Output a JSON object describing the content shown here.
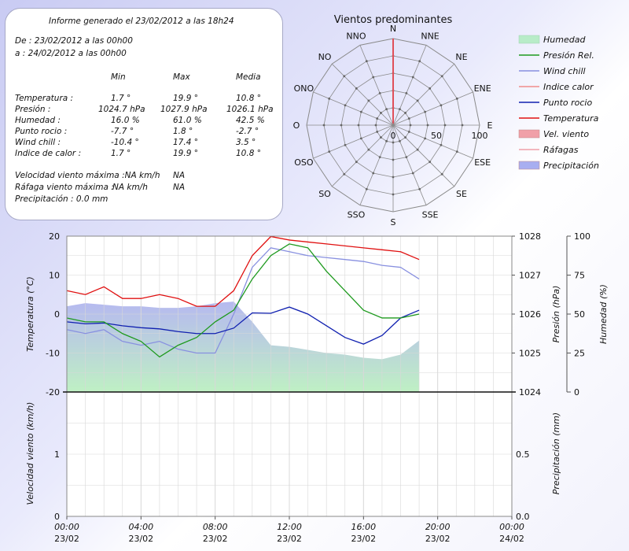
{
  "report": {
    "title": "Informe generado el 23/02/2012 a las 18h24",
    "from": "De : 23/02/2012 a las 00h00",
    "to": "a : 24/02/2012 a las 00h00",
    "col_min": "Min",
    "col_max": "Max",
    "col_avg": "Media",
    "rows": [
      {
        "label": "Temperatura :",
        "min": "1.7 °",
        "max": "19.9 °",
        "avg": "10.8 °"
      },
      {
        "label": "Presión :",
        "min": "1024.7 hPa",
        "max": "1027.9 hPa",
        "avg": "1026.1 hPa"
      },
      {
        "label": "Humedad :",
        "min": "16.0 %",
        "max": "61.0 %",
        "avg": "42.5 %"
      },
      {
        "label": "Punto rocio :",
        "min": "-7.7 °",
        "max": "1.8 °",
        "avg": "-2.7 °"
      },
      {
        "label": "Wind chill :",
        "min": "-10.4 °",
        "max": "17.4 °",
        "avg": "3.5 °"
      },
      {
        "label": "Indice de calor :",
        "min": "1.7 °",
        "max": "19.9 °",
        "avg": "10.8 °"
      }
    ],
    "wind_max": "Velocidad viento máxima :NA km/h",
    "wind_max_val": "NA",
    "gust_max": "Ráfaga viento máxima :",
    "gust_max_unit": "NA km/h",
    "gust_max_val": "NA",
    "precip": "Precipitación : 0.0 mm"
  },
  "wind_rose": {
    "title": "Vientos predominantes",
    "directions": [
      "N",
      "NNE",
      "NE",
      "ENE",
      "E",
      "ESE",
      "SE",
      "SSE",
      "S",
      "SSO",
      "SO",
      "OSO",
      "O",
      "ONO",
      "NO",
      "NNO"
    ],
    "scale_labels": [
      "0",
      "50",
      "100"
    ],
    "values": [
      100,
      0,
      0,
      0,
      0,
      0,
      0,
      0,
      0,
      0,
      0,
      0,
      0,
      0,
      0,
      0
    ],
    "bar_color": "#e0505a"
  },
  "legend": [
    {
      "label": "Humedad",
      "kind": "area",
      "color": "#b8ecc8"
    },
    {
      "label": "Presión Rel.",
      "kind": "line",
      "color": "#1e9a1e"
    },
    {
      "label": "Wind chill",
      "kind": "line",
      "color": "#8890e0"
    },
    {
      "label": "Indice calor",
      "kind": "line",
      "color": "#f08c8c"
    },
    {
      "label": "Punto rocio",
      "kind": "line",
      "color": "#1020b0"
    },
    {
      "label": "Temperatura",
      "kind": "line",
      "color": "#e01010"
    },
    {
      "label": "Vel. viento",
      "kind": "box",
      "color": "#f0a0a8"
    },
    {
      "label": "Ráfagas",
      "kind": "line",
      "color": "#f0a0a8"
    },
    {
      "label": "Precipitación",
      "kind": "box",
      "color": "#a8aef0"
    }
  ],
  "chart_data": [
    {
      "type": "line",
      "ylabel": "Temperatura (°C)",
      "ylabel2": "Presión (hPa)",
      "ylabel3": "Humedad (%)",
      "ylim": [
        -20,
        20
      ],
      "yticks": [
        "20",
        "10",
        "0",
        "-10",
        "-20"
      ],
      "y2lim": [
        1024,
        1028
      ],
      "y2ticks": [
        "1028",
        "1027",
        "1026",
        "1025",
        "1024"
      ],
      "y3lim": [
        0,
        100
      ],
      "y3ticks": [
        "100",
        "75",
        "50",
        "25",
        "0"
      ],
      "x_hours": [
        0,
        1,
        2,
        3,
        4,
        5,
        6,
        7,
        8,
        9,
        10,
        11,
        12,
        13,
        14,
        15,
        16,
        17,
        18,
        19
      ],
      "series": [
        {
          "name": "Humedad",
          "axis": "y3",
          "values": [
            55,
            57,
            56,
            55,
            55,
            54,
            54,
            55,
            57,
            58,
            45,
            30,
            29,
            27,
            25,
            24,
            22,
            21,
            24,
            33
          ]
        },
        {
          "name": "Temperatura",
          "axis": "y",
          "values": [
            6,
            5,
            7,
            4,
            4,
            5,
            4,
            2,
            2,
            6,
            15,
            19.9,
            19,
            18.5,
            18,
            17.5,
            17,
            16.5,
            16,
            14
          ]
        },
        {
          "name": "Wind chill",
          "axis": "y",
          "values": [
            -4,
            -5,
            -4,
            -7,
            -8,
            -7,
            -9,
            -10,
            -10,
            0,
            12,
            17,
            16,
            15,
            14.5,
            14,
            13.5,
            12.5,
            12,
            9
          ]
        },
        {
          "name": "Punto rocio",
          "axis": "y",
          "values": [
            -2,
            -2.5,
            -2.3,
            -3,
            -3.5,
            -3.8,
            -4.5,
            -5,
            -5,
            -3.6,
            0.3,
            0.2,
            1.8,
            0,
            -3,
            -6,
            -7.7,
            -5.5,
            -1,
            1
          ]
        },
        {
          "name": "Presión Rel.",
          "axis": "y2",
          "values": [
            1025.9,
            1025.8,
            1025.8,
            1025.5,
            1025.3,
            1024.9,
            1025.2,
            1025.4,
            1025.8,
            1026.1,
            1026.9,
            1027.5,
            1027.8,
            1027.7,
            1027.1,
            1026.6,
            1026.1,
            1025.9,
            1025.9,
            1026
          ]
        }
      ]
    },
    {
      "type": "bar",
      "ylabel": "Velocidad viento (km/h)",
      "ylabel2": "Precipitación (mm)",
      "ylim": [
        0,
        2
      ],
      "yticks": [
        "1",
        "0"
      ],
      "y2lim": [
        0,
        1
      ],
      "y2ticks": [
        "0.5",
        "0.0"
      ],
      "values": [],
      "xticks": [
        {
          "time": "00:00",
          "date": "23/02"
        },
        {
          "time": "04:00",
          "date": "23/02"
        },
        {
          "time": "08:00",
          "date": "23/02"
        },
        {
          "time": "12:00",
          "date": "23/02"
        },
        {
          "time": "16:00",
          "date": "23/02"
        },
        {
          "time": "20:00",
          "date": "23/02"
        },
        {
          "time": "00:00",
          "date": "24/02"
        }
      ]
    }
  ]
}
